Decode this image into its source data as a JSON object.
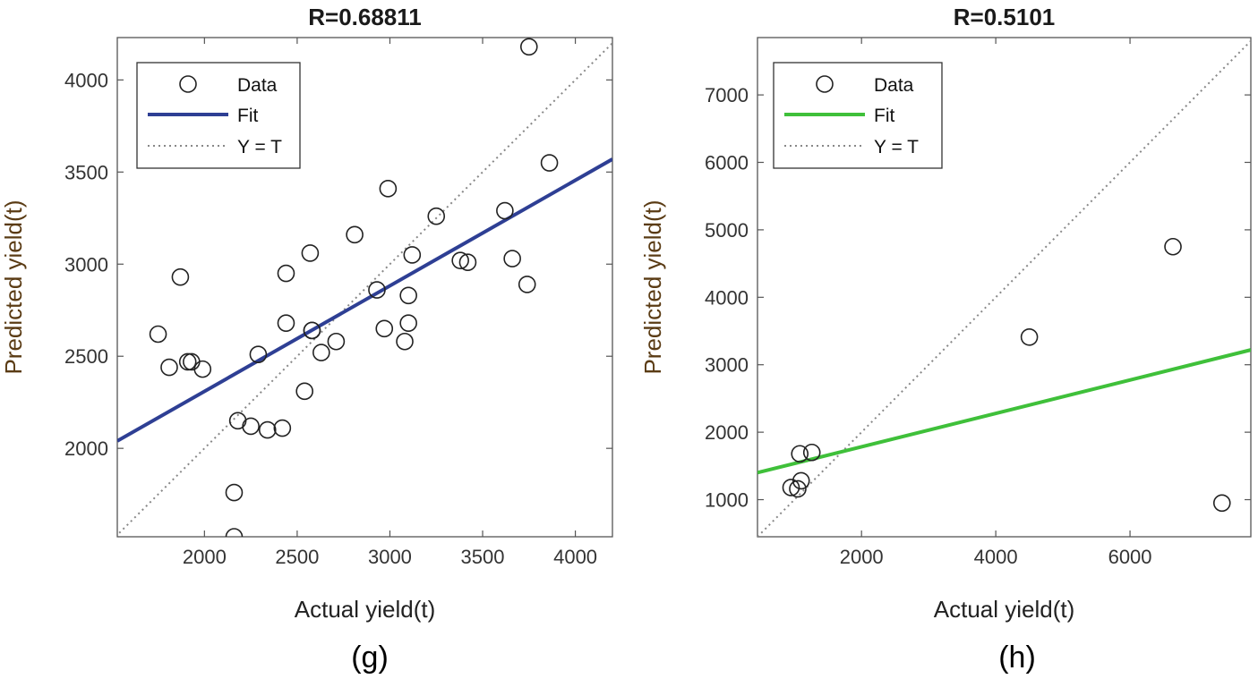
{
  "chart_data": [
    {
      "type": "scatter",
      "panel_label": "(g)",
      "title": "R=0.68811",
      "xlabel": "Actual yield(t)",
      "ylabel": "Predicted yield(t)",
      "xlim": [
        1530,
        4200
      ],
      "ylim": [
        1520,
        4230
      ],
      "xticks": [
        "2000",
        "2500",
        "3000",
        "3500",
        "4000"
      ],
      "yticks": [
        "2000",
        "2500",
        "3000",
        "3500",
        "4000"
      ],
      "grid": false,
      "legend_position": "top-left",
      "legend": [
        "Data",
        "Fit",
        "Y = T"
      ],
      "fit_color": "#2e3f94",
      "ref_color": "#888888",
      "marker_color": "#222222",
      "fit_line": {
        "x": [
          1530,
          4200
        ],
        "y": [
          2040,
          3570
        ]
      },
      "series": [
        {
          "name": "Data",
          "x": [
            1750,
            1810,
            1870,
            1910,
            1930,
            1990,
            2160,
            2180,
            2160,
            2250,
            2290,
            2340,
            2420,
            2440,
            2440,
            2540,
            2570,
            2580,
            2580,
            2630,
            2710,
            2810,
            2930,
            2970,
            2990,
            3080,
            3100,
            3100,
            3120,
            3250,
            3380,
            3420,
            3620,
            3660,
            3740,
            3750,
            3860
          ],
          "y": [
            2620,
            2440,
            2930,
            2470,
            2470,
            2430,
            1760,
            2150,
            1520,
            2120,
            2510,
            2100,
            2110,
            2950,
            2680,
            2310,
            3060,
            2640,
            2640,
            2520,
            2580,
            3160,
            2860,
            2650,
            3410,
            2580,
            2680,
            2830,
            3050,
            3260,
            3020,
            3010,
            3290,
            3030,
            2890,
            4180,
            3550
          ]
        }
      ]
    },
    {
      "type": "scatter",
      "panel_label": "(h)",
      "title": "R=0.5101",
      "xlabel": "Actual yield(t)",
      "ylabel": "Predicted yield(t)",
      "xlim": [
        450,
        7800
      ],
      "ylim": [
        450,
        7850
      ],
      "xticks": [
        "2000",
        "4000",
        "6000"
      ],
      "yticks": [
        "1000",
        "2000",
        "3000",
        "4000",
        "5000",
        "6000",
        "7000"
      ],
      "grid": false,
      "legend_position": "top-left",
      "legend": [
        "Data",
        "Fit",
        "Y = T"
      ],
      "fit_color": "#3fc03a",
      "ref_color": "#888888",
      "marker_color": "#222222",
      "fit_line": {
        "x": [
          450,
          7800
        ],
        "y": [
          1400,
          3220
        ]
      },
      "series": [
        {
          "name": "Data",
          "x": [
            950,
            1050,
            1100,
            1080,
            1260,
            4500,
            6640,
            7370
          ],
          "y": [
            1180,
            1160,
            1280,
            1680,
            1700,
            3410,
            4750,
            950
          ]
        }
      ]
    }
  ]
}
